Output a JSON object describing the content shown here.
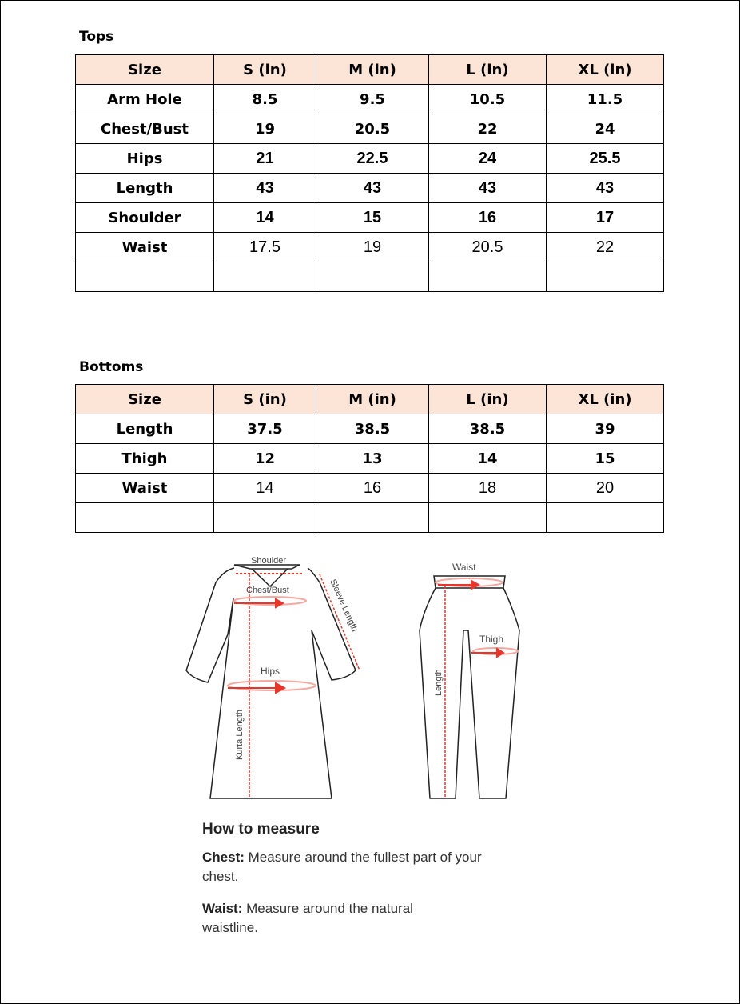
{
  "tops": {
    "title": "Tops",
    "headers": [
      "Size",
      "S (in)",
      "M (in)",
      "L (in)",
      "XL (in)"
    ],
    "rows": [
      {
        "label": "Arm Hole",
        "values": [
          "8.5",
          "9.5",
          "10.5",
          "11.5"
        ]
      },
      {
        "label": "Chest/Bust",
        "values": [
          "19",
          "20.5",
          "22",
          "24"
        ]
      },
      {
        "label": "Hips",
        "values": [
          "21",
          "22.5",
          "24",
          "25.5"
        ]
      },
      {
        "label": "Length",
        "values": [
          "43",
          "43",
          "43",
          "43"
        ]
      },
      {
        "label": "Shoulder",
        "values": [
          "14",
          "15",
          "16",
          "17"
        ]
      },
      {
        "label": "Waist",
        "values": [
          "17.5",
          "19",
          "20.5",
          "22"
        ]
      }
    ]
  },
  "bottoms": {
    "title": "Bottoms",
    "headers": [
      "Size",
      "S (in)",
      "M (in)",
      "L (in)",
      "XL (in)"
    ],
    "rows": [
      {
        "label": "Length",
        "values": [
          "37.5",
          "38.5",
          "38.5",
          "39"
        ]
      },
      {
        "label": "Thigh",
        "values": [
          "12",
          "13",
          "14",
          "15"
        ]
      },
      {
        "label": "Waist",
        "values": [
          "14",
          "16",
          "18",
          "20"
        ]
      }
    ]
  },
  "diagram": {
    "kurta_labels": {
      "shoulder": "Shoulder",
      "chest": "Chest/Bust",
      "sleeve": "Sleeve Length",
      "hips": "Hips",
      "length": "Kurta Length"
    },
    "pants_labels": {
      "waist": "Waist",
      "thigh": "Thigh",
      "length": "Length"
    },
    "accent_color": "#e8362a"
  },
  "how_to": {
    "title": "How to measure",
    "items": [
      {
        "term": "Chest:",
        "text": " Measure around the fullest part of your chest."
      },
      {
        "term": "Waist:",
        "text": " Measure around the natural waistline."
      }
    ]
  }
}
